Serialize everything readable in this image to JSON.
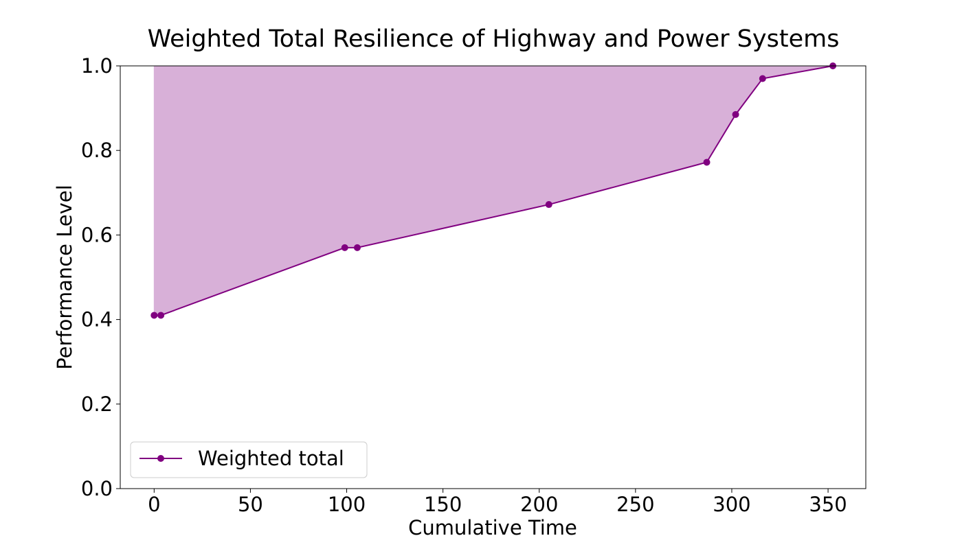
{
  "chart_data": {
    "type": "area",
    "title": "Weighted Total Resilience of Highway and Power Systems",
    "xlabel": "Cumulative Time",
    "ylabel": "Performance Level",
    "xlim": [
      -17.6,
      369.6
    ],
    "ylim": [
      0.0,
      1.0
    ],
    "xticks": [
      0,
      50,
      100,
      150,
      200,
      250,
      300,
      350
    ],
    "yticks": [
      0.0,
      0.2,
      0.4,
      0.6,
      0.8,
      1.0
    ],
    "xtick_labels": [
      "0",
      "50",
      "100",
      "150",
      "200",
      "250",
      "300",
      "350"
    ],
    "ytick_labels": [
      "0.0",
      "0.2",
      "0.4",
      "0.6",
      "0.8",
      "1.0"
    ],
    "grid": false,
    "legend": {
      "placement": "lower-left",
      "entries": [
        "Weighted  total"
      ]
    },
    "fill_to": 1.0,
    "series": [
      {
        "name": "Weighted  total",
        "color": "#800080",
        "fill_color": "#d8b0d8",
        "marker": "circle",
        "x": [
          0,
          3.5,
          99,
          105.5,
          205,
          287,
          302,
          316,
          352.5
        ],
        "y": [
          0.41,
          0.41,
          0.57,
          0.57,
          0.672,
          0.772,
          0.885,
          0.97,
          1.0
        ]
      }
    ]
  }
}
